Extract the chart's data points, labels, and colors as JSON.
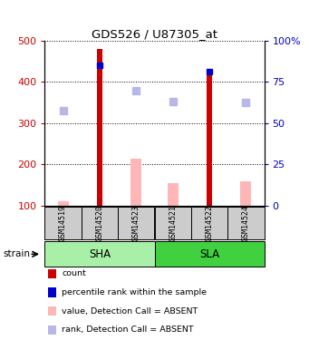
{
  "title": "GDS526 / U87305_at",
  "samples": [
    "GSM14519",
    "GSM14520",
    "GSM14523",
    "GSM14521",
    "GSM14522",
    "GSM14524"
  ],
  "groups_order": [
    "SHA",
    "SLA"
  ],
  "groups": {
    "SHA": [
      0,
      1,
      2
    ],
    "SLA": [
      3,
      4,
      5
    ]
  },
  "group_colors": {
    "SHA": "#a8f0a8",
    "SLA": "#40d040"
  },
  "red_bars": [
    null,
    480,
    null,
    null,
    430,
    null
  ],
  "blue_squares": [
    null,
    440,
    null,
    null,
    425,
    null
  ],
  "pink_bars": [
    110,
    null,
    215,
    155,
    null,
    160
  ],
  "lavender_squares": [
    330,
    null,
    378,
    352,
    null,
    350
  ],
  "ylim_left": [
    100,
    500
  ],
  "ylim_right": [
    0,
    100
  ],
  "yticks_left": [
    100,
    200,
    300,
    400,
    500
  ],
  "yticks_right": [
    0,
    25,
    50,
    75,
    100
  ],
  "ylabel_left_color": "#cc0000",
  "ylabel_right_color": "#0000cc",
  "sample_box_color": "#cccccc",
  "legend_items": [
    {
      "label": "count",
      "color": "#cc0000"
    },
    {
      "label": "percentile rank within the sample",
      "color": "#0000cc"
    },
    {
      "label": "value, Detection Call = ABSENT",
      "color": "#ffb6b6"
    },
    {
      "label": "rank, Detection Call = ABSENT",
      "color": "#b8b8e8"
    }
  ]
}
